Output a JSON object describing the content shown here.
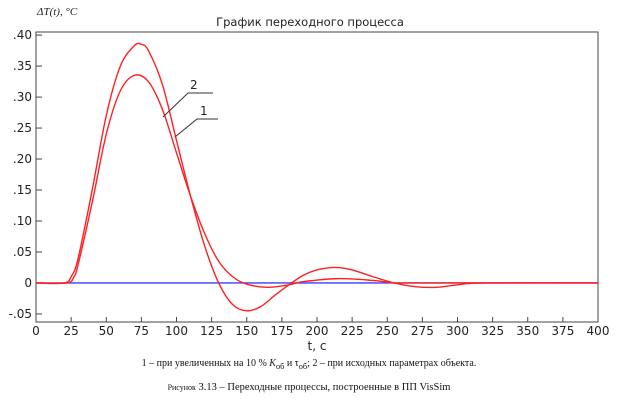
{
  "chart_data": {
    "type": "line",
    "title": "График переходного процесса",
    "ylabel": "ΔT(t), °C",
    "xlabel": "t, c",
    "xlim": [
      0,
      400
    ],
    "ylim": [
      -0.063,
      0.405
    ],
    "x_ticks": [
      0,
      25,
      50,
      75,
      100,
      125,
      150,
      175,
      200,
      225,
      250,
      275,
      300,
      325,
      350,
      375,
      400
    ],
    "x_tick_labels": [
      "0",
      "25",
      "50",
      "75",
      "100",
      "125",
      "150",
      "175",
      "200",
      "225",
      "250",
      "275",
      "300",
      "325",
      "350",
      "375",
      "400"
    ],
    "y_ticks": [
      0.4,
      0.35,
      0.3,
      0.25,
      0.2,
      0.15,
      0.1,
      0.05,
      0,
      -0.05
    ],
    "y_tick_labels": [
      ".40",
      ".35",
      ".30",
      ".25",
      ".20",
      ".15",
      ".10",
      ".05",
      "0",
      "-.05"
    ],
    "grid": false,
    "series": [
      {
        "name": "2",
        "color": "#ff2020",
        "x": [
          0,
          20,
          25,
          30,
          40,
          50,
          60,
          70,
          75,
          80,
          90,
          100,
          110,
          120,
          130,
          140,
          150,
          160,
          170,
          180,
          190,
          200,
          213,
          225,
          240,
          255,
          270,
          285,
          300,
          320,
          400
        ],
        "y": [
          0,
          0,
          0.01,
          0.04,
          0.15,
          0.27,
          0.35,
          0.383,
          0.385,
          0.375,
          0.32,
          0.23,
          0.14,
          0.06,
          0.0,
          -0.035,
          -0.045,
          -0.038,
          -0.02,
          -0.003,
          0.012,
          0.021,
          0.025,
          0.021,
          0.01,
          0,
          -0.006,
          -0.007,
          -0.003,
          0,
          0
        ]
      },
      {
        "name": "1",
        "color": "#ff2020",
        "x": [
          0,
          22,
          27,
          30,
          40,
          50,
          60,
          70,
          80,
          90,
          100,
          110,
          120,
          130,
          140,
          150,
          165,
          180,
          190,
          215,
          240,
          255,
          270,
          400
        ],
        "y": [
          0,
          0,
          0.01,
          0.03,
          0.13,
          0.24,
          0.31,
          0.335,
          0.325,
          0.28,
          0.21,
          0.14,
          0.08,
          0.035,
          0.01,
          -0.002,
          -0.007,
          -0.003,
          0.002,
          0.007,
          0.004,
          0,
          0,
          0
        ]
      }
    ],
    "baseline": {
      "y": 0,
      "color": "#3b3bff"
    },
    "annotations": [
      "2",
      "1"
    ]
  },
  "caption": {
    "legend_part1": "1 – при увеличенных на 10 % ",
    "k_sym": "K",
    "k_sub": "об",
    "and": " и ",
    "tau_sym": "τ",
    "tau_sub": "об",
    "legend_part2": "; 2 – при исходных параметрах объекта.",
    "figure_prefix": "Рисунок",
    "figure_number": "3.13",
    "figure_text": " – Переходные процессы, построенные в ПП VisSim"
  }
}
